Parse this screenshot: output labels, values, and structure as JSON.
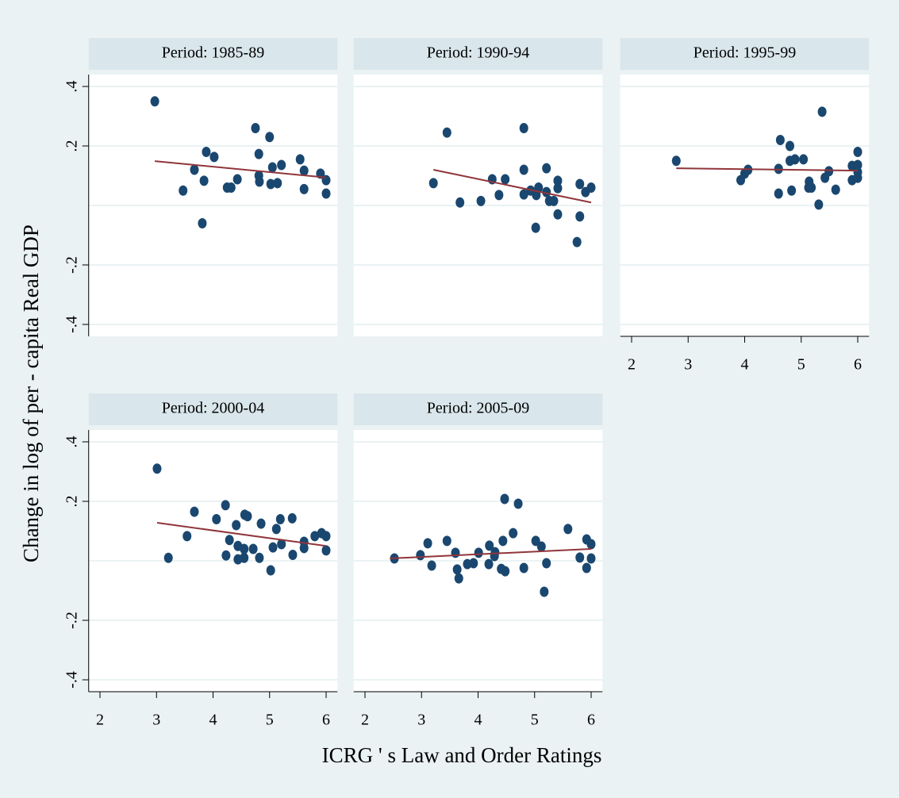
{
  "axis_titles": {
    "x": "ICRG ' s Law and Order Ratings",
    "y": "Change in log of per - capita Real GDP"
  },
  "chart_data": [
    {
      "type": "scatter",
      "title": "Period: 1985-89",
      "color": "#1a476f",
      "x": [
        2.97,
        3.47,
        3.67,
        3.84,
        3.88,
        3.81,
        4.02,
        4.25,
        4.32,
        4.43,
        4.75,
        4.81,
        4.81,
        4.82,
        5.0,
        5.02,
        5.05,
        5.14,
        5.21,
        5.54,
        5.61,
        5.61,
        5.9,
        6.0,
        6.0
      ],
      "values": [
        0.35,
        0.05,
        0.12,
        0.083,
        0.18,
        -0.06,
        0.163,
        0.06,
        0.06,
        0.088,
        0.26,
        0.173,
        0.1,
        0.08,
        0.23,
        0.072,
        0.128,
        0.075,
        0.136,
        0.155,
        0.117,
        0.055,
        0.107,
        0.085,
        0.04
      ],
      "fit_line": {
        "x": [
          2.97,
          6.0
        ],
        "values": [
          0.149,
          0.094
        ],
        "color": "#90353b"
      },
      "xlim": [
        1.8,
        6.2
      ],
      "ylim": [
        -0.44,
        0.44
      ],
      "yticks": [
        {
          "value": -0.4,
          "label": "-.4"
        },
        {
          "value": -0.2,
          "label": "-.2"
        },
        0,
        {
          "value": 0.2,
          "label": ".2"
        },
        {
          "value": 0.4,
          "label": ".4"
        }
      ]
    },
    {
      "type": "scatter",
      "title": "Period: 1990-94",
      "color": "#1a476f",
      "x": [
        3.21,
        3.45,
        3.68,
        4.05,
        4.25,
        4.37,
        4.48,
        4.81,
        4.81,
        4.81,
        4.93,
        5.02,
        5.03,
        5.07,
        5.21,
        5.21,
        5.26,
        5.34,
        5.41,
        5.41,
        5.41,
        5.75,
        5.8,
        5.8,
        5.9,
        6.0
      ],
      "values": [
        0.075,
        0.245,
        0.01,
        0.015,
        0.088,
        0.035,
        0.088,
        0.26,
        0.12,
        0.037,
        0.05,
        -0.075,
        0.035,
        0.06,
        0.125,
        0.045,
        0.015,
        0.015,
        0.083,
        0.058,
        -0.03,
        -0.123,
        0.072,
        -0.037,
        0.045,
        0.06
      ],
      "fit_line": {
        "x": [
          3.21,
          6.0
        ],
        "values": [
          0.12,
          0.01
        ],
        "color": "#90353b"
      },
      "xlim": [
        1.8,
        6.2
      ],
      "ylim": [
        -0.44,
        0.44
      ],
      "yticks": [
        -0.4,
        -0.2,
        0,
        0.2,
        0.4
      ]
    },
    {
      "type": "scatter",
      "title": "Period: 1995-99",
      "color": "#1a476f",
      "x": [
        2.79,
        3.93,
        4.0,
        4.06,
        4.63,
        4.6,
        4.6,
        4.8,
        4.8,
        4.83,
        4.89,
        5.04,
        5.14,
        5.13,
        5.18,
        5.31,
        5.37,
        5.42,
        5.49,
        5.61,
        5.9,
        5.9,
        6.0,
        6.0,
        6.0,
        6.0
      ],
      "values": [
        0.15,
        0.085,
        0.107,
        0.12,
        0.22,
        0.123,
        0.04,
        0.2,
        0.15,
        0.05,
        0.155,
        0.155,
        0.08,
        0.06,
        0.06,
        0.003,
        0.315,
        0.093,
        0.115,
        0.053,
        0.133,
        0.085,
        0.18,
        0.136,
        0.112,
        0.093
      ],
      "fit_line": {
        "x": [
          2.79,
          6.0
        ],
        "values": [
          0.125,
          0.117
        ],
        "color": "#90353b"
      },
      "xlim": [
        1.8,
        6.2
      ],
      "ylim": [
        -0.44,
        0.44
      ],
      "xticks": [
        2,
        3,
        4,
        5,
        6
      ],
      "yticks": [
        -0.4,
        -0.2,
        0,
        0.2,
        0.4
      ]
    },
    {
      "type": "scatter",
      "title": "Period: 2000-04",
      "color": "#1a476f",
      "x": [
        3.01,
        3.21,
        3.54,
        3.67,
        4.06,
        4.22,
        4.29,
        4.23,
        4.41,
        4.44,
        4.44,
        4.55,
        4.56,
        4.61,
        4.55,
        4.71,
        4.82,
        4.85,
        5.02,
        5.06,
        5.12,
        5.19,
        5.21,
        5.4,
        5.41,
        5.61,
        5.61,
        5.8,
        5.92,
        6.0,
        6.0
      ],
      "values": [
        0.31,
        0.01,
        0.083,
        0.165,
        0.14,
        0.187,
        0.07,
        0.018,
        0.12,
        0.05,
        0.005,
        0.04,
        0.155,
        0.15,
        0.01,
        0.04,
        0.01,
        0.125,
        -0.032,
        0.045,
        0.107,
        0.14,
        0.056,
        0.143,
        0.02,
        0.064,
        0.043,
        0.083,
        0.093,
        0.083,
        0.035
      ],
      "fit_line": {
        "x": [
          3.01,
          6.0
        ],
        "values": [
          0.128,
          0.05
        ],
        "color": "#90353b"
      },
      "xlim": [
        1.8,
        6.2
      ],
      "ylim": [
        -0.44,
        0.44
      ],
      "xticks": [
        2,
        3,
        4,
        5,
        6
      ],
      "yticks": [
        {
          "value": -0.4,
          "label": "-.4"
        },
        {
          "value": -0.2,
          "label": "-.2"
        },
        0,
        {
          "value": 0.2,
          "label": ".2"
        },
        {
          "value": 0.4,
          "label": ".4"
        }
      ]
    },
    {
      "type": "scatter",
      "title": "Period: 2005-09",
      "color": "#1a476f",
      "x": [
        2.52,
        2.98,
        3.11,
        3.18,
        3.45,
        3.6,
        3.63,
        3.66,
        3.81,
        3.92,
        4.01,
        4.2,
        4.19,
        4.29,
        4.3,
        4.44,
        4.41,
        4.48,
        4.47,
        4.62,
        4.71,
        4.81,
        5.02,
        5.12,
        5.17,
        5.21,
        5.59,
        5.8,
        5.92,
        5.92,
        6.0,
        6.0
      ],
      "values": [
        0.008,
        0.019,
        0.059,
        -0.016,
        0.067,
        0.027,
        -0.029,
        -0.059,
        -0.011,
        -0.008,
        0.027,
        0.051,
        -0.011,
        0.016,
        0.029,
        0.067,
        -0.027,
        -0.035,
        0.208,
        0.093,
        0.192,
        -0.024,
        0.067,
        0.048,
        -0.104,
        -0.008,
        0.107,
        0.011,
        0.072,
        -0.024,
        0.056,
        0.008
      ],
      "fit_line": {
        "x": [
          2.44,
          6.0
        ],
        "values": [
          0.008,
          0.04
        ],
        "color": "#90353b"
      },
      "xlim": [
        1.8,
        6.2
      ],
      "ylim": [
        -0.44,
        0.44
      ],
      "xticks": [
        2,
        3,
        4,
        5,
        6
      ],
      "yticks": [
        -0.4,
        -0.2,
        0,
        0.2,
        0.4
      ]
    }
  ]
}
